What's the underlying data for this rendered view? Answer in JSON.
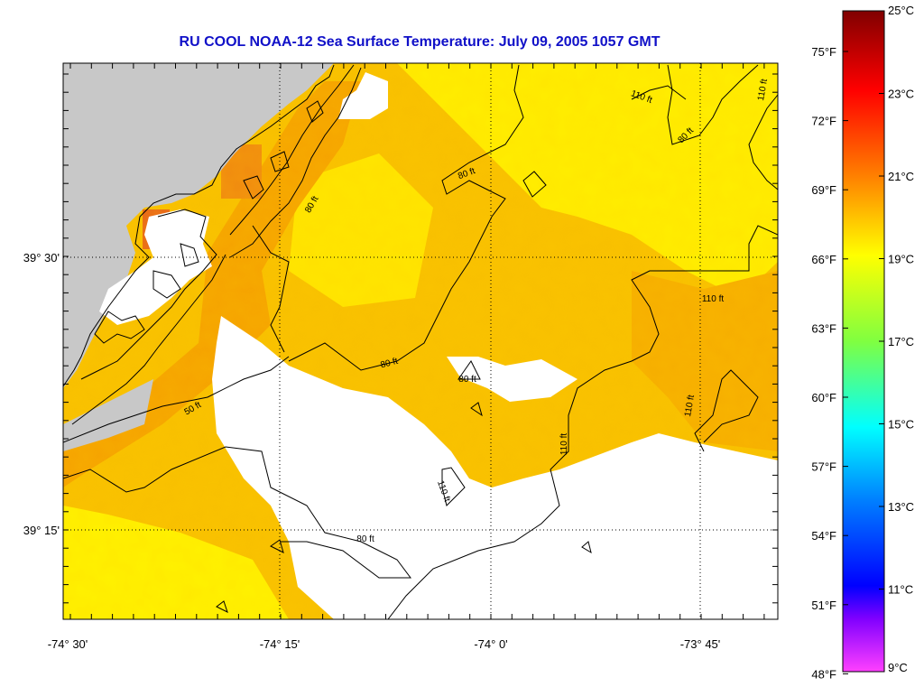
{
  "title": "RU COOL  NOAA-12  Sea Surface Temperature:  July 09, 2005 1057 GMT",
  "map": {
    "lat_labels": [
      "39° 30'",
      "39° 15'"
    ],
    "lon_labels": [
      "-74° 30'",
      "-74° 15'",
      "-74° 0'",
      "-73° 45'"
    ],
    "contour_labels": [
      "50 ft",
      "80 ft",
      "80 ft",
      "80 ft",
      "80 ft",
      "110 ft",
      "80 ft",
      "110 ft",
      "110 ft",
      "110 ft",
      "110 ft",
      "110 ft",
      "80 ft"
    ]
  },
  "colorbar": {
    "fahrenheit_labels": [
      "75°F",
      "72°F",
      "69°F",
      "66°F",
      "63°F",
      "60°F",
      "57°F",
      "54°F",
      "51°F",
      "48°F"
    ],
    "celsius_labels": [
      "25°C",
      "23°C",
      "21°C",
      "19°C",
      "17°C",
      "15°C",
      "13°C",
      "11°C",
      "9°C"
    ],
    "gradient_colors": [
      "#800000",
      "#ff0000",
      "#ff8000",
      "#ffff00",
      "#80ff40",
      "#00ffff",
      "#0080ff",
      "#0000ff",
      "#8000ff",
      "#ff40ff"
    ]
  },
  "colors": {
    "land": "#c8c8c8",
    "no_data": "#ffffff",
    "sst_warm": "#f5a300",
    "sst_mid": "#f8c800",
    "sst_cool": "#ffff00",
    "sst_hot": "#e86a1a",
    "title": "#1010c8"
  }
}
